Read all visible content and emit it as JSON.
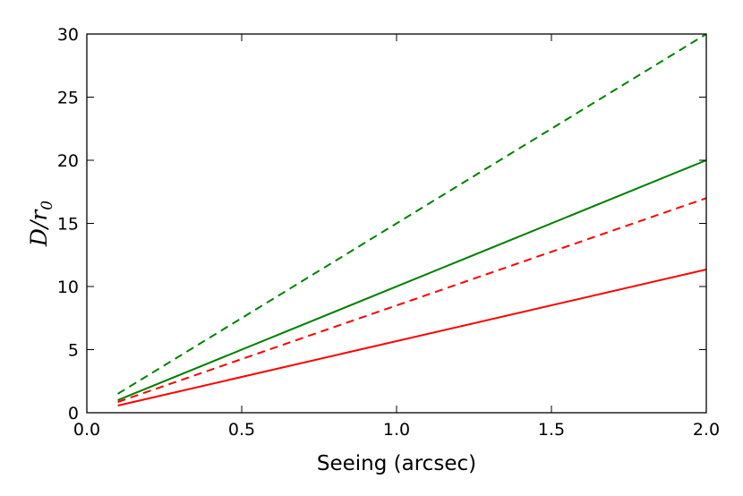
{
  "chart_data": {
    "type": "line",
    "title": "",
    "xlabel": "Seeing (arcsec)",
    "ylabel_parts": {
      "main": "D/r",
      "sub": "0"
    },
    "xlim": [
      0.0,
      2.0
    ],
    "ylim": [
      0,
      30
    ],
    "x_ticks": [
      0.0,
      0.5,
      1.0,
      1.5,
      2.0
    ],
    "x_tick_labels": [
      "0.0",
      "0.5",
      "1.0",
      "1.5",
      "2.0"
    ],
    "y_ticks": [
      0,
      5,
      10,
      15,
      20,
      25,
      30
    ],
    "y_tick_labels": [
      "0",
      "5",
      "10",
      "15",
      "20",
      "25",
      "30"
    ],
    "grid": false,
    "series": [
      {
        "color": "#008000",
        "style": "dashed",
        "x": [
          0.1,
          2.0
        ],
        "y": [
          1.5,
          30.0
        ]
      },
      {
        "color": "#008000",
        "style": "solid",
        "x": [
          0.1,
          2.0
        ],
        "y": [
          1.0,
          20.0
        ]
      },
      {
        "color": "#ff0000",
        "style": "dashed",
        "x": [
          0.1,
          2.0
        ],
        "y": [
          0.85,
          17.0
        ]
      },
      {
        "color": "#ff0000",
        "style": "solid",
        "x": [
          0.1,
          2.0
        ],
        "y": [
          0.57,
          11.35
        ]
      }
    ]
  }
}
